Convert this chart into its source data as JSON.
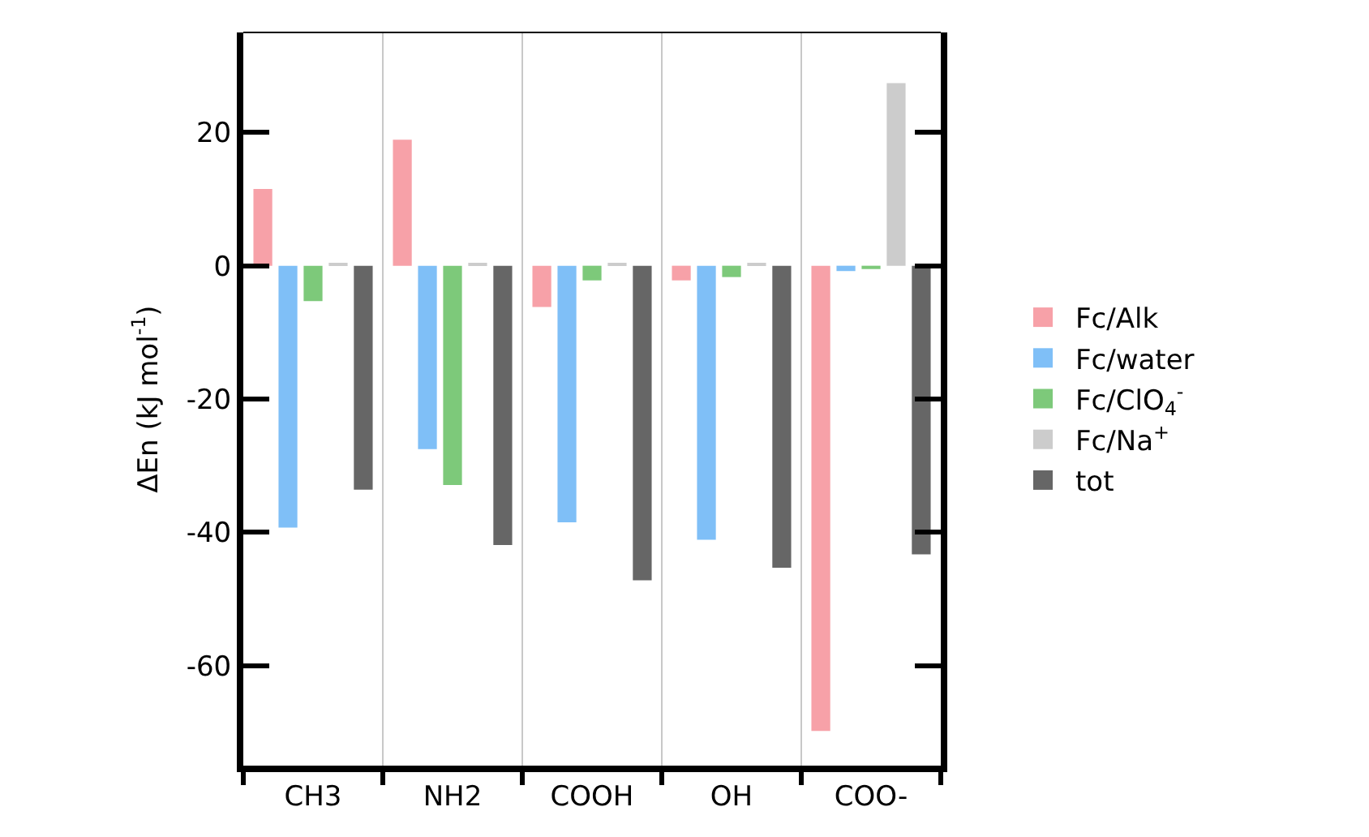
{
  "chart_data": {
    "type": "bar",
    "ylabel": "ΔEn (kJ mol$^{-1}$)",
    "categories": [
      "CH3",
      "NH2",
      "COOH",
      "OH",
      "COO-"
    ],
    "series": [
      {
        "name": "Fc/Alk",
        "color": "#f7a1a8",
        "values": [
          11.5,
          18.9,
          -6.2,
          -2.2,
          -69.8
        ]
      },
      {
        "name": "Fc/water",
        "color": "#7fbff7",
        "values": [
          -39.3,
          -27.5,
          -38.5,
          -41.1,
          -0.8
        ]
      },
      {
        "name": "Fc/ClO$_{4}$$^{-}$",
        "color": "#7dc97a",
        "values": [
          -5.3,
          -32.9,
          -2.2,
          -1.7,
          -0.5
        ]
      },
      {
        "name": "Fc/Na$^{+}$",
        "color": "#cccccc",
        "values": [
          0.3,
          0.3,
          0.3,
          0.3,
          27.4
        ]
      },
      {
        "name": "tot",
        "color": "#666666",
        "values": [
          -33.6,
          -41.9,
          -47.2,
          -45.3,
          -43.3
        ]
      }
    ],
    "ylim": [
      -75,
      35
    ],
    "yticks": [
      -60,
      -40,
      -20,
      0,
      20
    ],
    "grid": "x",
    "legend": "right"
  }
}
